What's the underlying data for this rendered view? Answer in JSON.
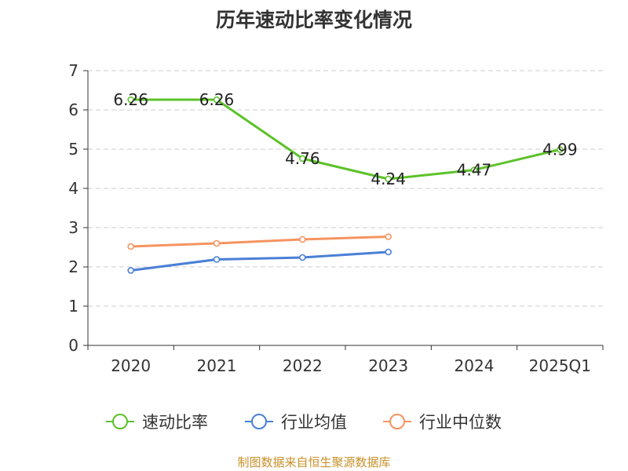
{
  "chart_data": {
    "type": "line",
    "title": "历年速动比率变化情况",
    "categories": [
      "2020",
      "2021",
      "2022",
      "2023",
      "2024",
      "2025Q1"
    ],
    "ylim": [
      0,
      7
    ],
    "yticks": [
      "0",
      "1",
      "2",
      "3",
      "4",
      "5",
      "6",
      "7"
    ],
    "grid": true,
    "legend_position": "bottom",
    "series": [
      {
        "name": "速动比率",
        "color": "#5cc22a",
        "values": [
          6.26,
          6.26,
          4.76,
          4.24,
          4.47,
          4.99
        ],
        "labels": [
          "6.26",
          "6.26",
          "4.76",
          "4.24",
          "4.47",
          "4.99"
        ]
      },
      {
        "name": "行业均值",
        "color": "#4a7fd6",
        "values": [
          1.91,
          2.19,
          2.24,
          2.38,
          null,
          null
        ]
      },
      {
        "name": "行业中位数",
        "color": "#f59460",
        "values": [
          2.52,
          2.6,
          2.7,
          2.77,
          null,
          null
        ]
      }
    ]
  },
  "source_text": "制图数据来自恒生聚源数据库",
  "source_color": "#c8902a"
}
